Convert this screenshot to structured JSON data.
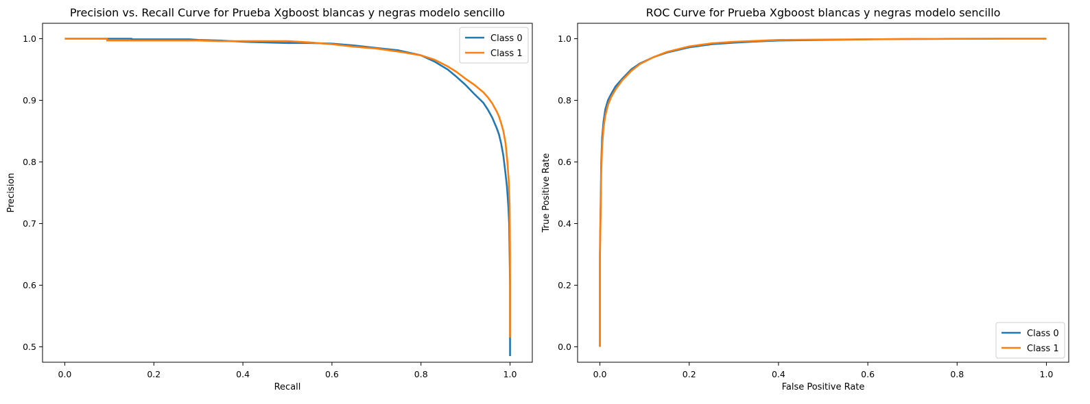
{
  "chart_data": [
    {
      "type": "line",
      "title": "Precision vs. Recall Curve for Prueba Xgboost blancas y negras modelo sencillo",
      "xlabel": "Recall",
      "ylabel": "Precision",
      "xlim": [
        -0.05,
        1.05
      ],
      "ylim": [
        0.475,
        1.025
      ],
      "xticks": [
        0.0,
        0.2,
        0.4,
        0.6,
        0.8,
        1.0
      ],
      "xtick_labels": [
        "0.0",
        "0.2",
        "0.4",
        "0.6",
        "0.8",
        "1.0"
      ],
      "yticks": [
        0.5,
        0.6,
        0.7,
        0.8,
        0.9,
        1.0
      ],
      "ytick_labels": [
        "0.5",
        "0.6",
        "0.7",
        "0.8",
        "0.9",
        "1.0"
      ],
      "grid": false,
      "legend": "top-right",
      "series": [
        {
          "name": "Class 0",
          "color": "#1f77b4",
          "x": [
            0.0,
            0.15,
            0.15,
            0.28,
            0.3,
            0.35,
            0.4,
            0.45,
            0.5,
            0.55,
            0.6,
            0.65,
            0.7,
            0.75,
            0.8,
            0.83,
            0.86,
            0.88,
            0.9,
            0.92,
            0.94,
            0.95,
            0.96,
            0.97,
            0.975,
            0.98,
            0.985,
            0.99,
            0.993,
            0.996,
            0.998,
            1.0,
            1.0
          ],
          "y": [
            1.0,
            1.0,
            0.999,
            0.999,
            0.998,
            0.997,
            0.995,
            0.994,
            0.993,
            0.993,
            0.992,
            0.989,
            0.985,
            0.981,
            0.973,
            0.963,
            0.95,
            0.938,
            0.925,
            0.91,
            0.896,
            0.885,
            0.872,
            0.855,
            0.845,
            0.83,
            0.81,
            0.78,
            0.76,
            0.73,
            0.7,
            0.6,
            0.485
          ]
        },
        {
          "name": "Class 1",
          "color": "#ff7f0e",
          "x": [
            0.0,
            0.095,
            0.095,
            0.2,
            0.3,
            0.35,
            0.4,
            0.45,
            0.5,
            0.55,
            0.6,
            0.65,
            0.7,
            0.75,
            0.8,
            0.83,
            0.86,
            0.88,
            0.9,
            0.92,
            0.94,
            0.95,
            0.96,
            0.97,
            0.975,
            0.98,
            0.985,
            0.99,
            0.994,
            0.997,
            0.999,
            1.0,
            1.0
          ],
          "y": [
            1.0,
            1.0,
            0.997,
            0.997,
            0.997,
            0.996,
            0.996,
            0.996,
            0.996,
            0.994,
            0.991,
            0.987,
            0.984,
            0.979,
            0.973,
            0.966,
            0.955,
            0.946,
            0.935,
            0.925,
            0.913,
            0.905,
            0.895,
            0.882,
            0.874,
            0.863,
            0.85,
            0.83,
            0.8,
            0.77,
            0.73,
            0.65,
            0.515
          ]
        }
      ]
    },
    {
      "type": "line",
      "title": "ROC Curve for Prueba Xgboost blancas y negras modelo sencillo",
      "xlabel": "False Positive Rate",
      "ylabel": "True Positive Rate",
      "xlim": [
        -0.05,
        1.05
      ],
      "ylim": [
        -0.05,
        1.05
      ],
      "xticks": [
        0.0,
        0.2,
        0.4,
        0.6,
        0.8,
        1.0
      ],
      "xtick_labels": [
        "0.0",
        "0.2",
        "0.4",
        "0.6",
        "0.8",
        "1.0"
      ],
      "yticks": [
        0.0,
        0.2,
        0.4,
        0.6,
        0.8,
        1.0
      ],
      "ytick_labels": [
        "0.0",
        "0.2",
        "0.4",
        "0.6",
        "0.8",
        "1.0"
      ],
      "grid": false,
      "legend": "bottom-right",
      "series": [
        {
          "name": "Class 0",
          "color": "#1f77b4",
          "x": [
            0.0,
            0.0,
            0.003,
            0.005,
            0.008,
            0.012,
            0.018,
            0.025,
            0.035,
            0.05,
            0.07,
            0.09,
            0.12,
            0.15,
            0.2,
            0.25,
            0.3,
            0.35,
            0.4,
            0.5,
            0.6,
            0.7,
            0.8,
            0.9,
            1.0
          ],
          "y": [
            0.0,
            0.3,
            0.6,
            0.68,
            0.73,
            0.77,
            0.8,
            0.82,
            0.845,
            0.87,
            0.9,
            0.92,
            0.94,
            0.955,
            0.972,
            0.982,
            0.987,
            0.991,
            0.994,
            0.996,
            0.998,
            0.999,
            0.9995,
            1.0,
            1.0
          ]
        },
        {
          "name": "Class 1",
          "color": "#ff7f0e",
          "x": [
            0.0,
            0.0,
            0.003,
            0.005,
            0.008,
            0.012,
            0.018,
            0.025,
            0.035,
            0.05,
            0.07,
            0.09,
            0.12,
            0.15,
            0.2,
            0.25,
            0.3,
            0.35,
            0.4,
            0.5,
            0.6,
            0.7,
            0.8,
            0.9,
            1.0
          ],
          "y": [
            0.0,
            0.28,
            0.57,
            0.65,
            0.71,
            0.75,
            0.785,
            0.81,
            0.835,
            0.865,
            0.895,
            0.918,
            0.94,
            0.957,
            0.975,
            0.985,
            0.99,
            0.993,
            0.996,
            0.997,
            0.998,
            0.999,
            0.9995,
            1.0,
            1.0
          ]
        }
      ]
    }
  ]
}
